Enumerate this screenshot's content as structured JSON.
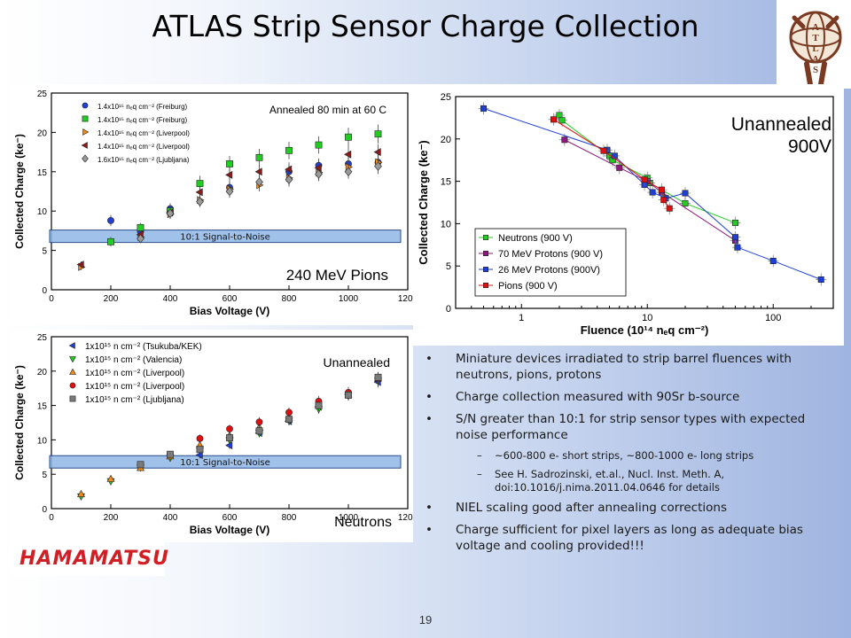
{
  "title": "ATLAS Strip Sensor Charge Collection",
  "page_number": "19",
  "logos": {
    "atlas": "ATLAS",
    "hamamatsu": "HAMAMATSU"
  },
  "colors": {
    "blue": "#1f3fd6",
    "green": "#22cc22",
    "orange": "#f08c1e",
    "darkred": "#8b1c1c",
    "red": "#e01010",
    "grey": "#9a9a9a",
    "purple": "#8e1a7e"
  },
  "bullets": [
    {
      "text": "Miniature devices irradiated to strip barrel fluences with neutrons, pions, protons",
      "level": 1
    },
    {
      "text": "Charge collection measured with 90Sr b-source",
      "level": 1
    },
    {
      "text": "S/N greater than 10:1 for strip sensor types with expected noise performance",
      "level": 1
    },
    {
      "text": "~600-800 e- short strips, ~800-1000 e- long strips",
      "level": 2
    },
    {
      "text": "See H. Sadrozinski, et.al., Nucl. Inst. Meth. A, doi:10.1016/j.nima.2011.04.0646  for details",
      "level": 2
    },
    {
      "text": "NIEL scaling good  after annealing corrections",
      "level": 1
    },
    {
      "text": "Charge sufficient for pixel layers as long as adequate bias voltage and cooling provided!!!",
      "level": 1
    }
  ],
  "chart_data": [
    {
      "id": "pions",
      "type": "scatter",
      "title": "240 MeV Pions",
      "annotation": "Annealed 80 min at 60 C",
      "band_label": "10:1  Signal-to-Noise",
      "band_y": 6.8,
      "xlabel": "Bias Voltage (V)",
      "ylabel": "Collected Charge (ke⁻)",
      "xlim": [
        0,
        1200
      ],
      "ylim": [
        0,
        25
      ],
      "xticks": [
        0,
        200,
        400,
        600,
        800,
        1000,
        1200
      ],
      "yticks": [
        0,
        5,
        10,
        15,
        20,
        25
      ],
      "legend_position": "top-left",
      "series": [
        {
          "name": "1.4x10¹⁵ n_eq cm⁻² (Freiburg)",
          "marker": "circle",
          "color": "#1f3fd6",
          "x": [
            200,
            300,
            400,
            600,
            800,
            900,
            1000,
            1100
          ],
          "y": [
            8.8,
            7.4,
            10.3,
            13.0,
            15.0,
            15.8,
            16.0,
            16.2
          ],
          "err": [
            0.7,
            0.6,
            0.7,
            0.8,
            0.9,
            0.9,
            1.0,
            1.0
          ]
        },
        {
          "name": "1.4x10¹⁵ n_eq cm⁻² (Freiburg)",
          "marker": "square",
          "color": "#22cc22",
          "x": [
            200,
            300,
            400,
            500,
            600,
            700,
            800,
            900,
            1000,
            1100
          ],
          "y": [
            6.1,
            7.9,
            10.0,
            13.5,
            16.0,
            16.8,
            17.7,
            18.4,
            19.4,
            19.8
          ],
          "err": [
            0.6,
            0.6,
            0.7,
            1.0,
            1.0,
            1.1,
            1.1,
            1.1,
            1.2,
            1.2
          ]
        },
        {
          "name": "1.4x10¹⁵ n_eq cm⁻² (Liverpool)",
          "marker": "triangle-right",
          "color": "#f08c1e",
          "x": [
            100,
            300,
            400,
            500,
            600,
            700,
            800,
            900,
            1000,
            1100
          ],
          "y": [
            2.9,
            6.7,
            9.6,
            11.4,
            12.8,
            13.3,
            14.2,
            14.9,
            15.6,
            16.2
          ],
          "err": [
            0.4,
            0.5,
            0.6,
            0.7,
            0.8,
            0.8,
            0.9,
            0.9,
            1.0,
            1.0
          ]
        },
        {
          "name": "1.4x10¹⁵ n_eq cm⁻² (Liverpool)",
          "marker": "triangle-left",
          "color": "#8b1c1c",
          "x": [
            100,
            300,
            400,
            500,
            600,
            700,
            800,
            900,
            1000,
            1100
          ],
          "y": [
            3.2,
            7.0,
            9.8,
            12.4,
            14.6,
            15.0,
            15.3,
            15.5,
            17.2,
            17.5
          ],
          "err": [
            0.4,
            0.5,
            0.6,
            0.8,
            0.9,
            0.9,
            0.9,
            1.0,
            1.0,
            1.0
          ]
        },
        {
          "name": "1.6x10¹⁵ n_eq cm⁻² (Ljubljana)",
          "marker": "diamond",
          "color": "#9a9a9a",
          "x": [
            300,
            400,
            500,
            600,
            700,
            800,
            900,
            1000,
            1100
          ],
          "y": [
            6.5,
            9.7,
            11.2,
            12.5,
            13.7,
            14.0,
            14.7,
            15.0,
            15.7
          ],
          "err": [
            0.5,
            0.6,
            0.7,
            0.8,
            0.8,
            0.9,
            0.9,
            0.9,
            1.0
          ]
        }
      ]
    },
    {
      "id": "unannealed",
      "type": "line",
      "title": "Unannealed 900V",
      "xlabel": "Fluence (10¹⁴ n_eq cm⁻²)",
      "ylabel": "Collected Charge (ke⁻)",
      "xscale": "log",
      "xlim": [
        0.3,
        300
      ],
      "ylim": [
        0,
        25
      ],
      "xticks": [
        1,
        10,
        100
      ],
      "yticks": [
        0,
        5,
        10,
        15,
        20,
        25
      ],
      "legend_position": "bottom-left",
      "series": [
        {
          "name": "Neutrons (900 V)",
          "marker": "square",
          "color": "#22cc22",
          "x": [
            2,
            2.1,
            5,
            5.3,
            10,
            10.5,
            20,
            50
          ],
          "y": [
            22.8,
            22.2,
            18.0,
            17.5,
            15.4,
            14.8,
            12.4,
            10.1
          ]
        },
        {
          "name": "70 MeV Protons (900 V)",
          "marker": "square",
          "color": "#8e1a7e",
          "x": [
            2.2,
            6,
            10,
            13,
            50
          ],
          "y": [
            19.9,
            16.6,
            15.0,
            13.7,
            8.0
          ]
        },
        {
          "name": "26 MeV Protons (900V)",
          "marker": "square",
          "color": "#1f3fd6",
          "x": [
            0.5,
            4.8,
            5.5,
            9.5,
            11,
            14,
            20,
            50,
            52,
            100,
            240
          ],
          "y": [
            23.6,
            18.7,
            18.0,
            14.6,
            13.7,
            13.0,
            13.6,
            8.4,
            7.2,
            5.6,
            3.4
          ]
        },
        {
          "name": "Pions (900 V)",
          "marker": "square",
          "color": "#e01010",
          "x": [
            1.8,
            4.5,
            9.5,
            13,
            13.5,
            15
          ],
          "y": [
            22.3,
            18.6,
            15.2,
            14.0,
            12.8,
            11.8
          ]
        }
      ]
    },
    {
      "id": "neutrons",
      "type": "scatter",
      "title": "Neutrons",
      "annotation": "Unannealed",
      "band_label": "10:1  Signal-to-Noise",
      "band_y": 6.8,
      "xlabel": "Bias Voltage (V)",
      "ylabel": "Collected Charge (ke⁻)",
      "xlim": [
        0,
        1200
      ],
      "ylim": [
        0,
        25
      ],
      "xticks": [
        0,
        200,
        400,
        600,
        800,
        1000,
        1200
      ],
      "yticks": [
        0,
        5,
        10,
        15,
        20,
        25
      ],
      "legend_position": "top-left",
      "series": [
        {
          "name": "1x10¹⁵ n cm⁻² (Tsukuba/KEK)",
          "marker": "triangle-left",
          "color": "#1f3fd6",
          "x": [
            500,
            600,
            700,
            800,
            900,
            1000,
            1100
          ],
          "y": [
            7.8,
            9.2,
            11.0,
            12.7,
            14.8,
            16.6,
            18.4
          ],
          "err": [
            0.5,
            0.5,
            0.6,
            0.6,
            0.7,
            0.7,
            0.8
          ]
        },
        {
          "name": "1x10¹⁵ n cm⁻² (Valencia)",
          "marker": "triangle-down",
          "color": "#22cc22",
          "x": [
            100,
            200,
            300,
            400,
            500,
            600,
            700,
            800,
            900,
            1000,
            1100
          ],
          "y": [
            1.8,
            4.0,
            6.0,
            7.4,
            8.7,
            10.0,
            11.0,
            12.8,
            14.5,
            16.4,
            18.6
          ],
          "err": [
            0.4,
            0.4,
            0.5,
            0.5,
            0.5,
            0.6,
            0.6,
            0.6,
            0.7,
            0.7,
            0.8
          ]
        },
        {
          "name": "1x10¹⁵ n cm⁻² (Liverpool)",
          "marker": "triangle-up",
          "color": "#f08c1e",
          "x": [
            100,
            200,
            300,
            400,
            500,
            600,
            700,
            800,
            900,
            1000,
            1100
          ],
          "y": [
            2.1,
            4.3,
            5.9,
            7.6,
            9.2,
            10.6,
            11.8,
            13.2,
            14.9,
            16.6,
            18.9
          ],
          "err": [
            0.4,
            0.4,
            0.5,
            0.5,
            0.6,
            0.6,
            0.6,
            0.7,
            0.7,
            0.8,
            0.8
          ]
        },
        {
          "name": "1x10¹⁵ n cm⁻² (Liverpool)",
          "marker": "circle",
          "color": "#e01010",
          "x": [
            500,
            600,
            700,
            800,
            900,
            1000,
            1100
          ],
          "y": [
            10.2,
            11.6,
            12.6,
            14.0,
            15.6,
            16.9,
            18.9
          ],
          "err": [
            0.6,
            0.6,
            0.7,
            0.7,
            0.8,
            0.8,
            0.9
          ]
        },
        {
          "name": "1x10¹⁵ n cm⁻² (Ljubljana)",
          "marker": "square",
          "color": "#7a7a7a",
          "x": [
            300,
            400,
            500,
            600,
            700,
            800,
            900,
            1000,
            1100
          ],
          "y": [
            6.4,
            7.9,
            8.6,
            10.3,
            11.3,
            13.0,
            15.0,
            16.5,
            19.1
          ],
          "err": [
            0.5,
            0.5,
            0.5,
            0.6,
            0.6,
            0.6,
            0.7,
            0.7,
            0.8
          ]
        }
      ]
    }
  ]
}
